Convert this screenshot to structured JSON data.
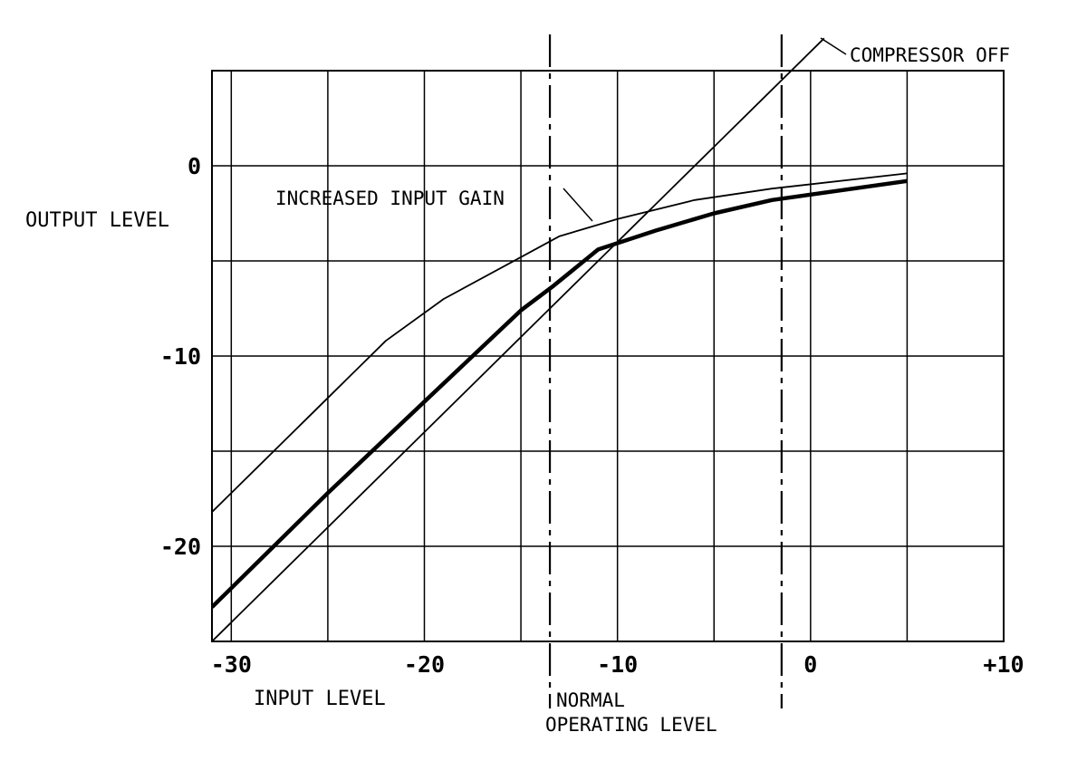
{
  "chart_data": {
    "type": "line",
    "title": "",
    "xlabel": "INPUT LEVEL",
    "ylabel": "OUTPUT LEVEL",
    "xlim": [
      -31,
      10
    ],
    "ylim": [
      -25,
      5
    ],
    "grid": true,
    "x_ticks": [
      {
        "value": -30,
        "label": "-30"
      },
      {
        "value": -20,
        "label": "-20"
      },
      {
        "value": -10,
        "label": "-10"
      },
      {
        "value": 0,
        "label": "0"
      },
      {
        "value": 10,
        "label": "+10"
      }
    ],
    "y_ticks": [
      {
        "value": 0,
        "label": "0"
      },
      {
        "value": -10,
        "label": "-10"
      },
      {
        "value": -20,
        "label": "-20"
      }
    ],
    "x_gridlines": [
      -30,
      -25,
      -20,
      -15,
      -10,
      -5,
      0,
      5
    ],
    "y_gridlines": [
      5,
      0,
      -5,
      -10,
      -15,
      -20,
      -25
    ],
    "series": [
      {
        "name": "COMPRESSOR OFF",
        "style": "thin",
        "x": [
          -31,
          0.7
        ],
        "y": [
          -25,
          6.7
        ]
      },
      {
        "name": "INCREASED INPUT GAIN",
        "style": "thin",
        "x": [
          -31,
          -26,
          -22,
          -19,
          -15,
          -13,
          -10,
          -6,
          -2,
          5
        ],
        "y": [
          -18.2,
          -13.2,
          -9.2,
          -7.0,
          -4.8,
          -3.7,
          -2.8,
          -1.8,
          -1.2,
          -0.4
        ]
      },
      {
        "name": "NORMAL",
        "style": "thick",
        "x": [
          -31,
          -25,
          -20,
          -15,
          -13.3,
          -11,
          -8,
          -5,
          -2,
          5
        ],
        "y": [
          -23.2,
          -17.2,
          -12.4,
          -7.6,
          -6.3,
          -4.4,
          -3.4,
          -2.5,
          -1.8,
          -0.8
        ]
      }
    ],
    "reference_lines": [
      {
        "axis": "x",
        "value": -13.5,
        "style": "dash-dot",
        "label": "NORMAL OPERATING LEVEL"
      },
      {
        "axis": "x",
        "value": -1.5,
        "style": "dash-dot",
        "label": ""
      }
    ],
    "annotations": [
      {
        "text": "COMPRESSOR OFF",
        "points_to": "COMPRESSOR OFF"
      },
      {
        "text": "INCREASED INPUT GAIN",
        "points_to": "INCREASED INPUT GAIN"
      }
    ],
    "normal_level_label": [
      "NORMAL",
      "OPERATING LEVEL"
    ]
  }
}
